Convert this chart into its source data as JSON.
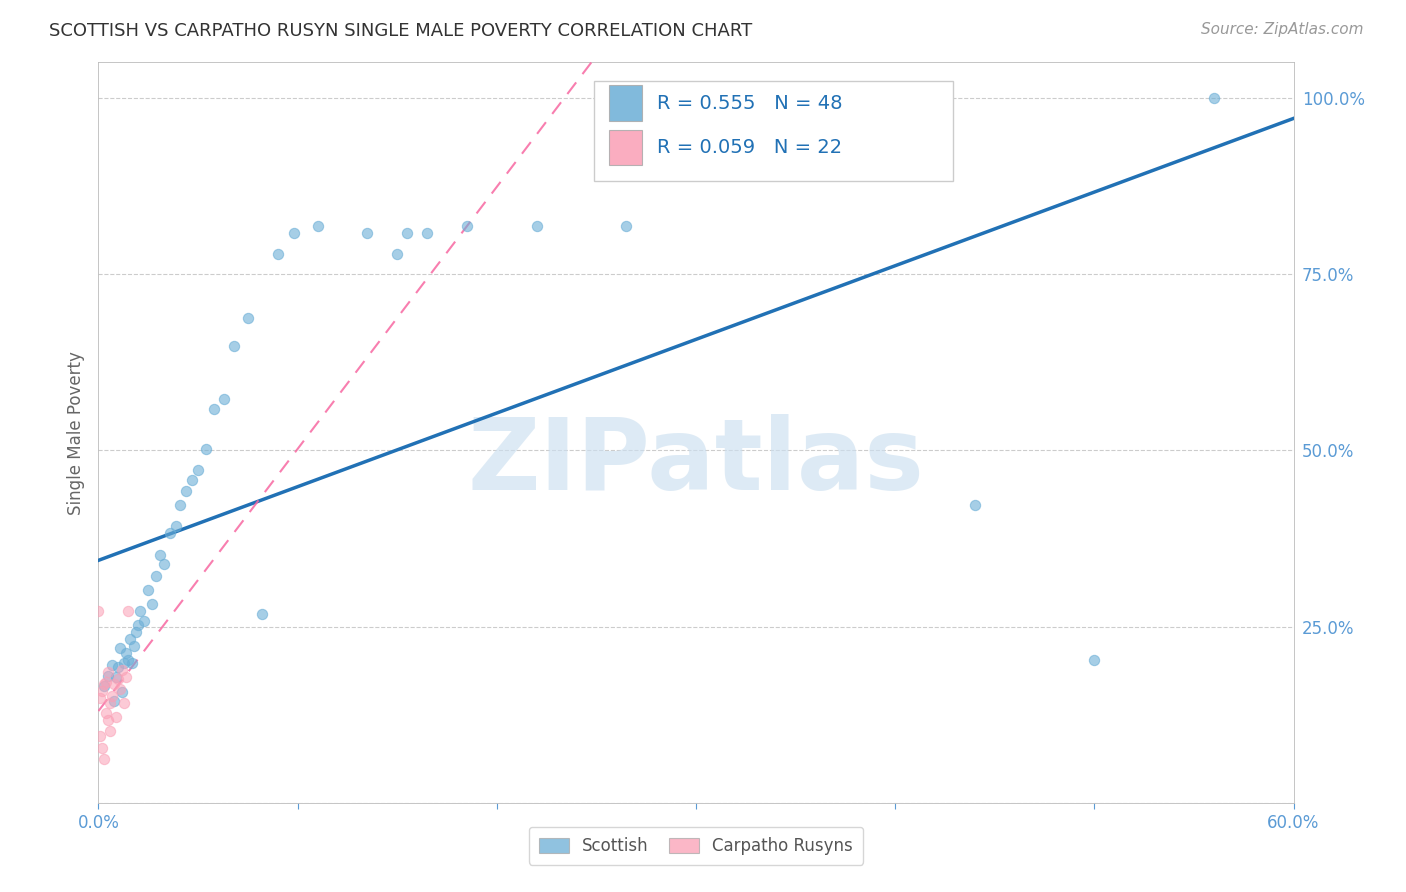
{
  "title": "SCOTTISH VS CARPATHO RUSYN SINGLE MALE POVERTY CORRELATION CHART",
  "source": "Source: ZipAtlas.com",
  "ylabel": "Single Male Poverty",
  "watermark": "ZIPatlas",
  "xlim": [
    0.0,
    0.6
  ],
  "ylim": [
    0.0,
    1.05
  ],
  "xticks": [
    0.0,
    0.1,
    0.2,
    0.3,
    0.4,
    0.5,
    0.6
  ],
  "yticks": [
    0.0,
    0.25,
    0.5,
    0.75,
    1.0
  ],
  "xtick_labels": [
    "0.0%",
    "",
    "",
    "",
    "",
    "",
    "60.0%"
  ],
  "ytick_labels": [
    "",
    "25.0%",
    "50.0%",
    "75.0%",
    "100.0%"
  ],
  "scottish_R": 0.555,
  "scottish_N": 48,
  "carpatho_R": 0.059,
  "carpatho_N": 22,
  "scottish_color": "#6baed6",
  "carpatho_color": "#fa9fb5",
  "scottish_line_color": "#2171b5",
  "carpatho_line_color": "#f768a1",
  "grid_color": "#cccccc",
  "axis_label_color": "#5b9bd5",
  "title_color": "#333333",
  "scottish_x": [
    0.003,
    0.005,
    0.007,
    0.008,
    0.009,
    0.01,
    0.011,
    0.012,
    0.013,
    0.014,
    0.015,
    0.016,
    0.017,
    0.018,
    0.019,
    0.02,
    0.021,
    0.023,
    0.025,
    0.027,
    0.029,
    0.031,
    0.033,
    0.036,
    0.039,
    0.041,
    0.044,
    0.047,
    0.05,
    0.054,
    0.058,
    0.063,
    0.068,
    0.075,
    0.082,
    0.09,
    0.098,
    0.11,
    0.135,
    0.15,
    0.165,
    0.185,
    0.22,
    0.265,
    0.155,
    0.44,
    0.5,
    0.56
  ],
  "scottish_y": [
    0.165,
    0.18,
    0.195,
    0.145,
    0.178,
    0.192,
    0.22,
    0.157,
    0.198,
    0.212,
    0.202,
    0.232,
    0.198,
    0.222,
    0.242,
    0.252,
    0.272,
    0.258,
    0.302,
    0.282,
    0.322,
    0.352,
    0.338,
    0.382,
    0.392,
    0.422,
    0.442,
    0.458,
    0.472,
    0.502,
    0.558,
    0.572,
    0.648,
    0.688,
    0.268,
    0.778,
    0.808,
    0.818,
    0.808,
    0.778,
    0.808,
    0.818,
    0.818,
    0.818,
    0.808,
    0.422,
    0.202,
    1.0
  ],
  "carpatho_x": [
    0.0,
    0.001,
    0.001,
    0.002,
    0.002,
    0.003,
    0.003,
    0.004,
    0.004,
    0.005,
    0.005,
    0.006,
    0.006,
    0.007,
    0.008,
    0.009,
    0.01,
    0.011,
    0.012,
    0.013,
    0.014,
    0.015
  ],
  "carpatho_y": [
    0.272,
    0.095,
    0.148,
    0.078,
    0.158,
    0.062,
    0.168,
    0.128,
    0.172,
    0.118,
    0.185,
    0.102,
    0.142,
    0.152,
    0.168,
    0.122,
    0.175,
    0.162,
    0.188,
    0.142,
    0.178,
    0.272
  ]
}
